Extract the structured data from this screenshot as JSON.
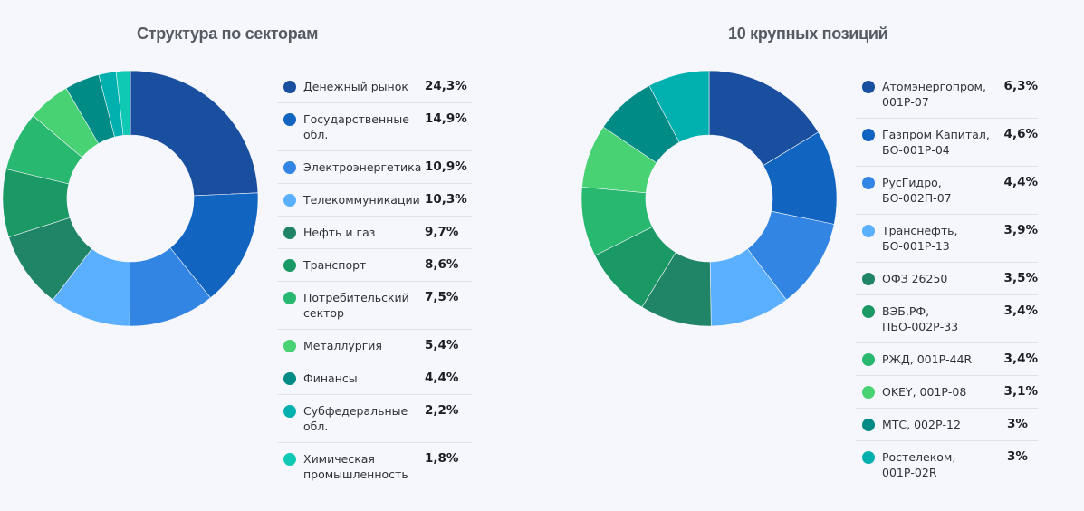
{
  "chart_data": [
    {
      "type": "pie",
      "variant": "donut",
      "title": "Структура по секторам",
      "categories": [
        "Денежный рынок",
        "Государственные обл.",
        "Электроэнергетика",
        "Телекоммуникации",
        "Нефть и газ",
        "Транспорт",
        "Потребительский сектор",
        "Металлургия",
        "Финансы",
        "Субфедеральные обл.",
        "Химическая промышленность"
      ],
      "values": [
        24.3,
        14.9,
        10.9,
        10.3,
        9.7,
        8.6,
        7.5,
        5.4,
        4.4,
        2.2,
        1.8
      ],
      "labels": [
        "24,3%",
        "14,9%",
        "10,9%",
        "10,3%",
        "9,7%",
        "8,6%",
        "7,5%",
        "5,4%",
        "4,4%",
        "2,2%",
        "1,8%"
      ],
      "colors": [
        "#1a4fa0",
        "#1164c0",
        "#3385e4",
        "#5aafff",
        "#208466",
        "#1a9964",
        "#28b870",
        "#48d274",
        "#008b86",
        "#00b0ae",
        "#0fc9b4"
      ],
      "legend_position": "right"
    },
    {
      "type": "pie",
      "variant": "donut",
      "title": "10 крупных позиций",
      "categories": [
        "Атомэнергопром, 001Р-07",
        "Газпром Капитал, БО-001Р-04",
        "РусГидро, БО-002П-07",
        "Транснефть, БО-001Р-13",
        "ОФЗ 26250",
        "ВЭБ.РФ, ПБО-002Р-33",
        "РЖД, 001Р-44R",
        "OKEY, 001Р-08",
        "МТС, 002Р-12",
        "Ростелеком, 001Р-02R"
      ],
      "values": [
        6.3,
        4.6,
        4.4,
        3.9,
        3.5,
        3.4,
        3.4,
        3.1,
        3.0,
        3.0
      ],
      "labels": [
        "6,3%",
        "4,6%",
        "4,4%",
        "3,9%",
        "3,5%",
        "3,4%",
        "3,4%",
        "3,1%",
        "3%",
        "3%"
      ],
      "colors": [
        "#1a4fa0",
        "#1164c0",
        "#3385e4",
        "#5aafff",
        "#208466",
        "#1a9964",
        "#28b870",
        "#48d274",
        "#008b86",
        "#00b0ae"
      ],
      "legend_position": "right"
    }
  ],
  "sectors": {
    "title": "Структура по секторам",
    "items": [
      {
        "label": "Денежный рынок",
        "value": "24,3%",
        "color": "#1a4fa0"
      },
      {
        "label": "Государственные обл.",
        "value": "14,9%",
        "color": "#1164c0"
      },
      {
        "label": "Электроэнергетика",
        "value": "10,9%",
        "color": "#3385e4"
      },
      {
        "label": "Телекоммуникации",
        "value": "10,3%",
        "color": "#5aafff"
      },
      {
        "label": "Нефть и газ",
        "value": "9,7%",
        "color": "#208466"
      },
      {
        "label": "Транспорт",
        "value": "8,6%",
        "color": "#1a9964"
      },
      {
        "label": "Потребительский сектор",
        "value": "7,5%",
        "color": "#28b870"
      },
      {
        "label": "Металлургия",
        "value": "5,4%",
        "color": "#48d274"
      },
      {
        "label": "Финансы",
        "value": "4,4%",
        "color": "#008b86"
      },
      {
        "label": "Субфедеральные обл.",
        "value": "2,2%",
        "color": "#00b0ae"
      },
      {
        "label": "Химическая промышленность",
        "value": "1,8%",
        "color": "#0fc9b4"
      }
    ]
  },
  "positions": {
    "title": "10 крупных позиций",
    "items": [
      {
        "label": "Атомэнергопром, 001Р-07",
        "value": "6,3%",
        "color": "#1a4fa0"
      },
      {
        "label": "Газпром Капитал, БО-001Р-04",
        "value": "4,6%",
        "color": "#1164c0"
      },
      {
        "label": "РусГидро, БО-002П-07",
        "value": "4,4%",
        "color": "#3385e4"
      },
      {
        "label": "Транснефть, БО-001Р-13",
        "value": "3,9%",
        "color": "#5aafff"
      },
      {
        "label": "ОФЗ 26250",
        "value": "3,5%",
        "color": "#208466"
      },
      {
        "label": "ВЭБ.РФ, ПБО-002Р-33",
        "value": "3,4%",
        "color": "#1a9964"
      },
      {
        "label": "РЖД, 001Р-44R",
        "value": "3,4%",
        "color": "#28b870"
      },
      {
        "label": "OKEY, 001Р-08",
        "value": "3,1%",
        "color": "#48d274"
      },
      {
        "label": "МТС, 002Р-12",
        "value": "3%",
        "color": "#008b86"
      },
      {
        "label": "Ростелеком, 001Р-02R",
        "value": "3%",
        "color": "#00b0ae"
      }
    ]
  }
}
